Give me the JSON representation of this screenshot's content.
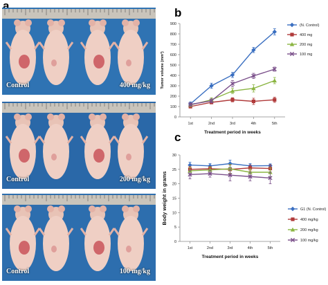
{
  "panel_letters": {
    "a": "a",
    "b": "b",
    "c": "c"
  },
  "photos": [
    {
      "left_label": "Control",
      "right_label": "400 mg/kg",
      "bg": "#2f73b3"
    },
    {
      "left_label": "Control",
      "right_label": "200 mg/kg",
      "bg": "#2a68a8"
    },
    {
      "left_label": "Control",
      "right_label": "100 mg/kg",
      "bg": "#2d6eae"
    }
  ],
  "chart_data": [
    {
      "type": "line",
      "panel": "b",
      "xlabel": "Treatment period in weeks",
      "ylabel": "Tumor volume (mm³)",
      "categories": [
        "1st",
        "2nd",
        "3rd",
        "4th",
        "5th"
      ],
      "ylim": [
        0,
        900
      ],
      "yticks": [
        0,
        100,
        200,
        300,
        400,
        500,
        600,
        700,
        800,
        900
      ],
      "legend_position": "right",
      "series": [
        {
          "name": "(N. Control)",
          "color": "#3a6fc1",
          "marker": "diamond",
          "values": [
            125,
            300,
            405,
            645,
            820
          ],
          "errors": [
            20,
            25,
            25,
            25,
            30
          ]
        },
        {
          "name": "400 mg",
          "color": "#b03a3a",
          "marker": "square",
          "values": [
            100,
            140,
            165,
            150,
            165
          ],
          "errors": [
            15,
            15,
            20,
            30,
            25
          ]
        },
        {
          "name": "200 mg",
          "color": "#8bb542",
          "marker": "triangle",
          "values": [
            115,
            165,
            250,
            275,
            350
          ],
          "errors": [
            15,
            20,
            25,
            35,
            30
          ]
        },
        {
          "name": "100 mg",
          "color": "#7a4f8a",
          "marker": "x",
          "values": [
            120,
            155,
            320,
            395,
            460
          ],
          "errors": [
            15,
            20,
            30,
            25,
            20
          ]
        }
      ]
    },
    {
      "type": "line",
      "panel": "c",
      "xlabel": "Treatment period in weeks",
      "ylabel": "Body weight in grams",
      "categories": [
        "1st",
        "2nd",
        "3rd",
        "4th",
        "5th"
      ],
      "ylim": [
        0,
        30
      ],
      "yticks": [
        0,
        5,
        10,
        15,
        20,
        25,
        30
      ],
      "legend_position": "right",
      "series": [
        {
          "name": "G1 (N. Control)",
          "color": "#3a6fc1",
          "marker": "diamond",
          "values": [
            26.5,
            26.2,
            27.0,
            26.2,
            26.3
          ],
          "errors": [
            1.0,
            0.8,
            1.2,
            0.8,
            0.6
          ]
        },
        {
          "name": "400 mg/kg",
          "color": "#b03a3a",
          "marker": "square",
          "values": [
            25.0,
            25.2,
            25.0,
            25.5,
            25.3
          ],
          "errors": [
            1.0,
            0.8,
            1.5,
            1.0,
            1.2
          ]
        },
        {
          "name": "200 mg/kg",
          "color": "#8bb542",
          "marker": "triangle",
          "values": [
            24.5,
            24.8,
            25.2,
            24.0,
            24.0
          ],
          "errors": [
            1.2,
            1.0,
            1.5,
            1.2,
            1.5
          ]
        },
        {
          "name": "100 mg/kg",
          "color": "#7a4f8a",
          "marker": "x",
          "values": [
            23.2,
            23.5,
            23.0,
            22.5,
            22.0
          ],
          "errors": [
            1.5,
            1.2,
            2.0,
            1.5,
            2.0
          ]
        }
      ]
    }
  ]
}
